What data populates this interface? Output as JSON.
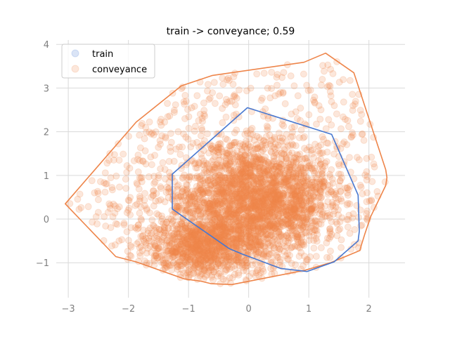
{
  "chart_data": {
    "type": "scatter",
    "title": "train -> conveyance; 0.59",
    "xlabel": "",
    "ylabel": "",
    "xlim": [
      -3.2,
      2.6
    ],
    "ylim": [
      -1.8,
      4.1
    ],
    "xticks": [
      -3,
      -2,
      -1,
      0,
      1,
      2
    ],
    "yticks": [
      -1,
      0,
      1,
      2,
      3,
      4
    ],
    "grid": true,
    "legend": {
      "placement": "top-left"
    },
    "series": [
      {
        "name": "train",
        "color": "#4878d0",
        "marker_alpha": 0.2,
        "hull": [
          [
            -0.02,
            2.55
          ],
          [
            1.38,
            1.94
          ],
          [
            1.82,
            0.55
          ],
          [
            1.84,
            -0.28
          ],
          [
            1.82,
            -0.5
          ],
          [
            1.42,
            -0.98
          ],
          [
            0.97,
            -1.2
          ],
          [
            0.53,
            -1.13
          ],
          [
            -0.11,
            -0.8
          ],
          [
            -0.32,
            -0.68
          ],
          [
            -1.27,
            0.23
          ],
          [
            -1.27,
            1.03
          ]
        ]
      },
      {
        "name": "conveyance",
        "color": "#ee854a",
        "marker_alpha": 0.2,
        "hull": [
          [
            1.28,
            3.8
          ],
          [
            1.75,
            3.35
          ],
          [
            2.28,
            1.13
          ],
          [
            2.3,
            0.95
          ],
          [
            2.28,
            0.77
          ],
          [
            2.03,
            0.06
          ],
          [
            1.93,
            -0.35
          ],
          [
            1.86,
            -0.66
          ],
          [
            1.85,
            -0.72
          ],
          [
            1.36,
            -1.0
          ],
          [
            0.94,
            -1.17
          ],
          [
            0.2,
            -1.37
          ],
          [
            -0.28,
            -1.5
          ],
          [
            -0.62,
            -1.48
          ],
          [
            -0.8,
            -1.42
          ],
          [
            -1.07,
            -1.37
          ],
          [
            -1.87,
            -0.98
          ],
          [
            -2.21,
            -0.86
          ],
          [
            -3.05,
            0.35
          ],
          [
            -1.87,
            2.22
          ],
          [
            -1.12,
            3.05
          ],
          [
            -0.6,
            3.29
          ],
          [
            0.92,
            3.59
          ]
        ]
      }
    ]
  }
}
